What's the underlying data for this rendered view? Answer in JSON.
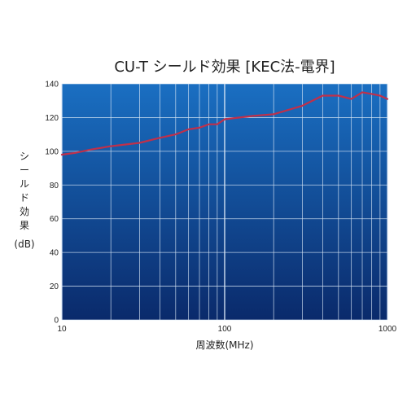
{
  "chart_data": {
    "type": "line",
    "title": "CU-T シールド効果 [KEC法-電界]",
    "xlabel": "周波数(MHz)",
    "ylabel_lines": [
      "シ",
      "ー",
      "ル",
      "ド",
      "効",
      "果",
      "(dB)"
    ],
    "x_scale": "log",
    "xlim": [
      10,
      1000
    ],
    "ylim": [
      0,
      140
    ],
    "x_ticks": [
      10,
      100,
      1000
    ],
    "x_tick_labels": [
      "10",
      "100",
      "1000"
    ],
    "y_ticks": [
      0,
      20,
      40,
      60,
      80,
      100,
      120,
      140
    ],
    "y_tick_labels": [
      "0",
      "20",
      "40",
      "60",
      "80",
      "100",
      "120",
      "140"
    ],
    "grid": true,
    "series": [
      {
        "color": "#c0304a",
        "x": [
          10,
          12,
          15,
          20,
          30,
          40,
          50,
          60,
          70,
          80,
          90,
          100,
          150,
          200,
          300,
          400,
          500,
          600,
          700,
          800,
          900,
          1000
        ],
        "y": [
          98,
          99,
          101,
          103,
          105,
          108,
          110,
          113,
          114,
          116,
          116,
          119,
          121,
          122,
          127,
          133,
          133,
          131,
          135,
          134,
          133,
          131
        ]
      }
    ],
    "colors": {
      "plot_top": "#1a6fc2",
      "plot_bottom": "#0a2a6b",
      "grid": "#d8e6f5",
      "line": "#c0304a"
    }
  }
}
